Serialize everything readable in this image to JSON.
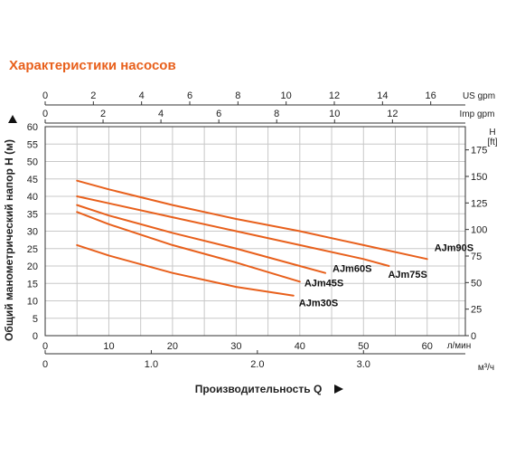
{
  "page": {
    "title": "Характеристики насосов"
  },
  "colors": {
    "accent": "#e8601c",
    "curve": "#e8601c",
    "grid": "#c8c8c8",
    "axis": "#333333"
  },
  "chart_data": {
    "type": "line",
    "title": "Характеристики насосов",
    "xlabel": "Производительность Q",
    "ylabel": "Общий манометрический напор Н (м)",
    "x_unit": "л/мин",
    "xlim": [
      0,
      66
    ],
    "ylim": [
      0,
      60
    ],
    "grid": true,
    "x_ticks": [
      "0",
      "10",
      "20",
      "30",
      "40",
      "50",
      "60"
    ],
    "y_ticks": [
      "0",
      "5",
      "10",
      "15",
      "20",
      "25",
      "30",
      "35",
      "40",
      "45",
      "50",
      "55",
      "60"
    ],
    "secondary_axes": {
      "us_gpm": {
        "label": "US gpm",
        "ticks": [
          "0",
          "2",
          "4",
          "6",
          "8",
          "10",
          "12",
          "14",
          "16"
        ]
      },
      "imp_gpm": {
        "label": "Imp gpm",
        "ticks": [
          "0",
          "2",
          "4",
          "6",
          "8",
          "10",
          "12"
        ]
      },
      "m3h": {
        "label": "м³/ч",
        "ticks": [
          "0",
          "1.0",
          "2.0",
          "3.0"
        ]
      },
      "feet": {
        "label_top": "H",
        "label_unit": "[ft]",
        "ticks": [
          "0",
          "25",
          "50",
          "75",
          "100",
          "125",
          "150",
          "175"
        ]
      }
    },
    "series": [
      {
        "name": "AJm90S",
        "x": [
          5,
          10,
          20,
          30,
          40,
          50,
          60
        ],
        "y": [
          44.5,
          42,
          37.5,
          33.5,
          30,
          26,
          22
        ]
      },
      {
        "name": "AJm75S",
        "x": [
          5,
          10,
          20,
          30,
          40,
          50,
          54
        ],
        "y": [
          40,
          38,
          34,
          30,
          26,
          22,
          20
        ]
      },
      {
        "name": "AJm60S",
        "x": [
          5,
          10,
          20,
          30,
          40,
          44
        ],
        "y": [
          37.5,
          34.5,
          29.5,
          25,
          20,
          18
        ]
      },
      {
        "name": "AJm45S",
        "x": [
          5,
          10,
          20,
          30,
          40
        ],
        "y": [
          35.5,
          32,
          26,
          21,
          15.5
        ]
      },
      {
        "name": "AJm30S",
        "x": [
          5,
          10,
          20,
          30,
          39
        ],
        "y": [
          26,
          23,
          18,
          14,
          11.5
        ]
      }
    ]
  }
}
